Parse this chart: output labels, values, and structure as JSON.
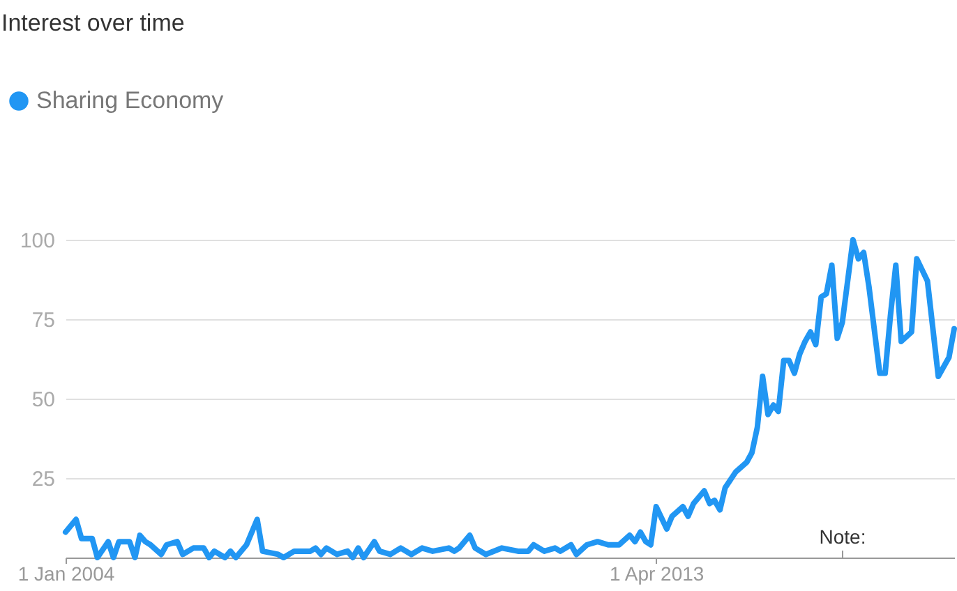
{
  "chart_data": {
    "type": "line",
    "title": "Interest over time",
    "x": [
      "2004-01",
      "2004-03",
      "2004-04",
      "2004-06",
      "2004-07",
      "2004-09",
      "2004-10",
      "2004-11",
      "2005-01",
      "2005-02",
      "2005-03",
      "2005-04",
      "2005-05",
      "2005-07",
      "2005-08",
      "2005-10",
      "2005-11",
      "2006-01",
      "2006-03",
      "2006-04",
      "2006-05",
      "2006-07",
      "2006-08",
      "2006-09",
      "2006-11",
      "2007-01",
      "2007-02",
      "2007-05",
      "2007-06",
      "2007-08",
      "2007-11",
      "2007-12",
      "2008-01",
      "2008-02",
      "2008-04",
      "2008-06",
      "2008-07",
      "2008-08",
      "2008-09",
      "2008-11",
      "2008-12",
      "2009-02",
      "2009-04",
      "2009-06",
      "2009-08",
      "2009-10",
      "2010-01",
      "2010-02",
      "2010-03",
      "2010-05",
      "2010-06",
      "2010-08",
      "2010-11",
      "2011-02",
      "2011-04",
      "2011-05",
      "2011-07",
      "2011-09",
      "2011-10",
      "2011-12",
      "2012-01",
      "2012-03",
      "2012-05",
      "2012-07",
      "2012-09",
      "2012-11",
      "2012-12",
      "2013-01",
      "2013-02",
      "2013-03",
      "2013-04",
      "2013-06",
      "2013-07",
      "2013-09",
      "2013-10",
      "2013-11",
      "2014-01",
      "2014-02",
      "2014-03",
      "2014-04",
      "2014-05",
      "2014-07",
      "2014-09",
      "2014-10",
      "2014-11",
      "2014-12",
      "2015-01",
      "2015-02",
      "2015-03",
      "2015-04",
      "2015-05",
      "2015-06",
      "2015-07",
      "2015-08",
      "2015-09",
      "2015-10",
      "2015-11",
      "2015-12",
      "2016-01",
      "2016-02",
      "2016-03",
      "2016-05",
      "2016-06",
      "2016-07",
      "2016-08",
      "2016-10",
      "2016-11",
      "2016-12",
      "2017-01",
      "2017-02",
      "2017-04",
      "2017-05",
      "2017-07",
      "2017-09",
      "2017-11",
      "2017-12"
    ],
    "series": [
      {
        "name": "Sharing Economy",
        "color": "#2196f3",
        "values": [
          8,
          12,
          6,
          6,
          0,
          5,
          0,
          5,
          5,
          0,
          7,
          5,
          4,
          1,
          4,
          5,
          1,
          3,
          3,
          0,
          2,
          0,
          2,
          0,
          4,
          12,
          2,
          1,
          0,
          2,
          2,
          3,
          1,
          3,
          1,
          2,
          0,
          3,
          0,
          5,
          2,
          1,
          3,
          1,
          3,
          2,
          3,
          2,
          3,
          7,
          3,
          1,
          3,
          2,
          2,
          4,
          2,
          3,
          2,
          4,
          1,
          4,
          5,
          4,
          4,
          7,
          5,
          8,
          5,
          4,
          16,
          9,
          13,
          16,
          13,
          17,
          21,
          17,
          18,
          15,
          22,
          27,
          30,
          33,
          41,
          57,
          45,
          48,
          46,
          62,
          62,
          58,
          64,
          68,
          71,
          67,
          82,
          83,
          92,
          69,
          74,
          100,
          94,
          96,
          85,
          58,
          58,
          76,
          92,
          68,
          71,
          94,
          87,
          57,
          63,
          72
        ]
      }
    ],
    "xlim": [
      "2004-01",
      "2017-12"
    ],
    "xticks": [
      {
        "value": "2004-01-01",
        "label": "1 Jan 2004"
      },
      {
        "value": "2013-04-01",
        "label": "1 Apr 2013"
      }
    ],
    "ylim": [
      0,
      100
    ],
    "yticks": [
      {
        "value": 0,
        "label": null
      },
      25,
      50,
      75,
      100
    ],
    "grid": "y",
    "legend": "top left",
    "annotations": [
      "Note:"
    ]
  }
}
